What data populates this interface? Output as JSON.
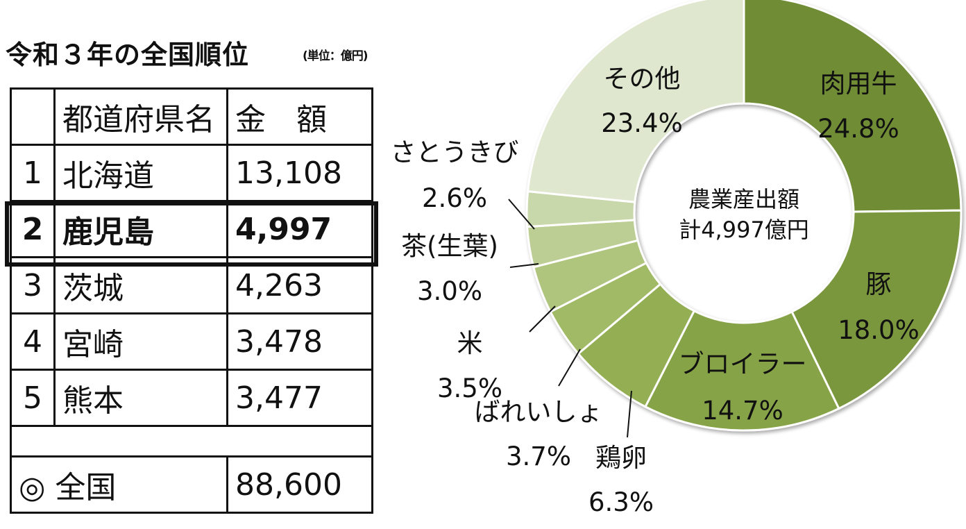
{
  "table": {
    "title": "令和３年の全国順位",
    "unit": "(単位：億円)",
    "header": {
      "rank": "",
      "name": "都道府県名",
      "amount": "金　額"
    },
    "rows": [
      {
        "rank": "1",
        "name": "北海道",
        "amount": "13,108"
      },
      {
        "rank": "2",
        "name": "鹿児島",
        "amount": "4,997",
        "highlight": true
      },
      {
        "rank": "3",
        "name": "茨城",
        "amount": "4,263"
      },
      {
        "rank": "4",
        "name": "宮崎",
        "amount": "3,478"
      },
      {
        "rank": "5",
        "name": "熊本",
        "amount": "3,477"
      }
    ],
    "total": {
      "label": "◎ 全国",
      "amount": "88,600"
    }
  },
  "chart_data": {
    "type": "pie",
    "donut": true,
    "center_label_1": "農業産出額",
    "center_label_2": "計4,997億円",
    "slices": [
      {
        "name": "肉用牛",
        "value": 24.8,
        "label": "24.8%",
        "color": "#6f8c35"
      },
      {
        "name": "豚",
        "value": 18.0,
        "label": "18.0%",
        "color": "#7a973d"
      },
      {
        "name": "ブロイラー",
        "value": 14.7,
        "label": "14.7%",
        "color": "#87a346"
      },
      {
        "name": "鶏卵",
        "value": 6.3,
        "label": "6.3%",
        "color": "#93ae52"
      },
      {
        "name": "ばれいしょ",
        "value": 3.7,
        "label": "3.7%",
        "color": "#a1ba66"
      },
      {
        "name": "米",
        "value": 3.5,
        "label": "3.5%",
        "color": "#afc47c"
      },
      {
        "name": "茶(生葉)",
        "value": 3.0,
        "label": "3.0%",
        "color": "#bcce93"
      },
      {
        "name": "さとうきび",
        "value": 2.6,
        "label": "2.6%",
        "color": "#c9d8aa"
      },
      {
        "name": "その他",
        "value": 23.4,
        "label": "23.4%",
        "color": "#dfe7cf"
      }
    ]
  }
}
